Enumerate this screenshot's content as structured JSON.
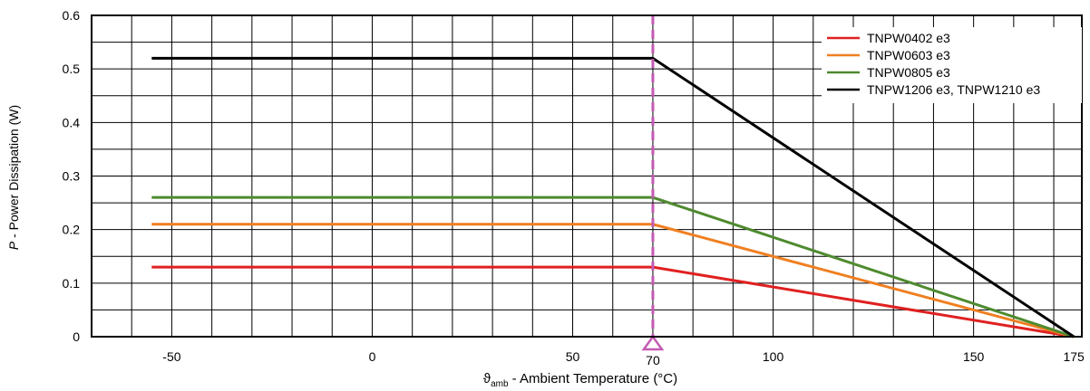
{
  "chart_data": {
    "type": "line",
    "xlabel": {
      "symbol": "ϑ",
      "sub": "amb",
      "text": " - Ambient Temperature (°C)"
    },
    "ylabel": {
      "italic": "P",
      "text": " - Power Dissipation (W)"
    },
    "xlim": [
      -70,
      177
    ],
    "ylim": [
      0,
      0.6
    ],
    "x_ticks": [
      -50,
      0,
      50,
      100,
      150,
      175
    ],
    "x_tick_labels": [
      "-50",
      "0",
      "50",
      "100",
      "150",
      "175"
    ],
    "y_ticks": [
      0,
      0.1,
      0.2,
      0.3,
      0.4,
      0.5,
      0.6
    ],
    "y_tick_labels": [
      "0",
      "0.1",
      "0.2",
      "0.3",
      "0.4",
      "0.5",
      "0.6"
    ],
    "grid": true,
    "legend_position": "top-right",
    "marker": {
      "x": 70,
      "label": "70",
      "color": "#c45ab3"
    },
    "series": [
      {
        "name": "TNPW0402 e3",
        "color": "#e02020",
        "x": [
          -55,
          70,
          175
        ],
        "y": [
          0.13,
          0.13,
          0
        ]
      },
      {
        "name": "TNPW0603 e3",
        "color": "#f07f20",
        "x": [
          -55,
          70,
          175
        ],
        "y": [
          0.21,
          0.21,
          0
        ]
      },
      {
        "name": "TNPW0805 e3",
        "color": "#4e8a2e",
        "x": [
          -55,
          70,
          175
        ],
        "y": [
          0.26,
          0.26,
          0
        ]
      },
      {
        "name": "TNPW1206 e3, TNPW1210 e3",
        "color": "#000000",
        "x": [
          -55,
          70,
          175
        ],
        "y": [
          0.52,
          0.52,
          0
        ]
      }
    ]
  }
}
